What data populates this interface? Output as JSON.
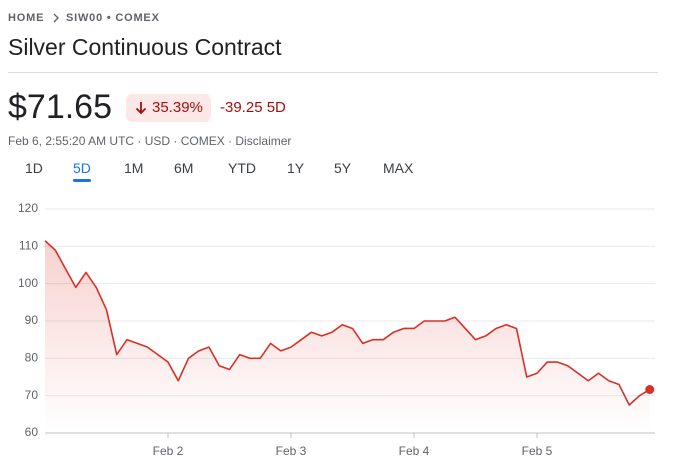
{
  "breadcrumb": {
    "home": "HOME",
    "symbol": "SIW00 • COMEX"
  },
  "title": "Silver Continuous Contract",
  "quote": {
    "price": "$71.65",
    "change_percent": "35.39%",
    "change": "-39.25",
    "period": "5D",
    "info": "Feb 6, 2:55:20 AM UTC · USD · COMEX · Disclaimer"
  },
  "tabs": [
    "1D",
    "5D",
    "1M",
    "6M",
    "YTD",
    "1Y",
    "5Y",
    "MAX"
  ],
  "selected_tab": "5D",
  "chart_data": {
    "type": "line",
    "categories": [
      null,
      null,
      null,
      null,
      null,
      null,
      null,
      null,
      null,
      null,
      null,
      null,
      "Feb 2",
      null,
      null,
      null,
      null,
      null,
      null,
      null,
      null,
      null,
      null,
      null,
      "Feb 3",
      null,
      null,
      null,
      null,
      null,
      null,
      null,
      null,
      null,
      null,
      null,
      "Feb 4",
      null,
      null,
      null,
      null,
      null,
      null,
      null,
      null,
      null,
      null,
      null,
      "Feb 5",
      null,
      null,
      null,
      null,
      null,
      null,
      null,
      null,
      null,
      null,
      null
    ],
    "series": [
      {
        "color": "#d93025",
        "values": [
          111.5,
          109,
          104,
          99,
          103,
          99,
          93,
          81,
          85,
          84,
          83,
          81,
          79,
          74,
          80,
          82,
          83,
          78,
          77,
          81,
          80,
          80,
          84,
          82,
          83,
          85,
          87,
          86,
          87,
          89,
          88,
          84,
          85,
          85,
          87,
          88,
          88,
          90,
          90,
          90,
          91,
          88,
          85,
          86,
          88,
          89,
          88,
          75,
          76,
          79,
          79,
          78,
          76,
          74,
          76,
          74,
          73,
          67.5,
          70,
          71.65
        ]
      }
    ],
    "ylim": [
      60,
      120
    ],
    "yticks": [
      60,
      70,
      80,
      90,
      100,
      110,
      120
    ],
    "grid": true
  }
}
